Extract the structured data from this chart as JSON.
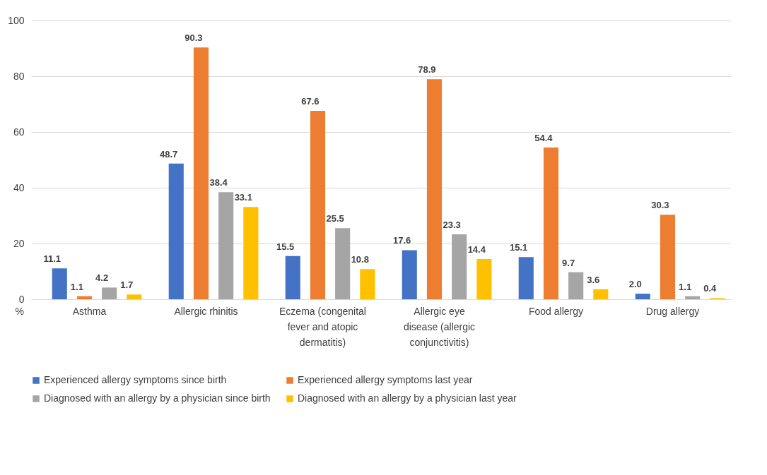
{
  "chart_data": {
    "type": "bar",
    "ylabel": "%",
    "categories": [
      "Asthma",
      "Allergic rhinitis",
      "Eczema (congenital fever and atopic dermatitis)",
      "Allergic eye disease (allergic conjunctivitis)",
      "Food allergy",
      "Drug allergy"
    ],
    "series": [
      {
        "name": "Experienced allergy symptoms since birth",
        "color": "#4472c4",
        "values": [
          11.1,
          48.7,
          15.5,
          17.6,
          15.1,
          2.0
        ],
        "value_labels": [
          "11.1",
          "48.7",
          "15.5",
          "17.6",
          "15.1",
          "2.0"
        ]
      },
      {
        "name": "Experienced allergy symptoms last year",
        "color": "#ed7d31",
        "values": [
          1.1,
          90.3,
          67.6,
          78.9,
          54.4,
          30.3
        ]
      },
      {
        "name": "Diagnosed with an allergy by a physician since birth",
        "color": "#a5a5a5",
        "values": [
          4.2,
          38.4,
          25.5,
          23.3,
          9.7,
          1.1
        ]
      },
      {
        "name": "Diagnosed with an allergy by a physician last year",
        "color": "#ffc000",
        "values": [
          1.7,
          33.1,
          10.8,
          14.4,
          3.6,
          0.4
        ]
      }
    ],
    "ylim": [
      0,
      100
    ],
    "yticks": [
      0,
      20,
      40,
      60,
      80,
      100
    ],
    "grid": "y",
    "legend": "bottom",
    "data_labels": true
  }
}
